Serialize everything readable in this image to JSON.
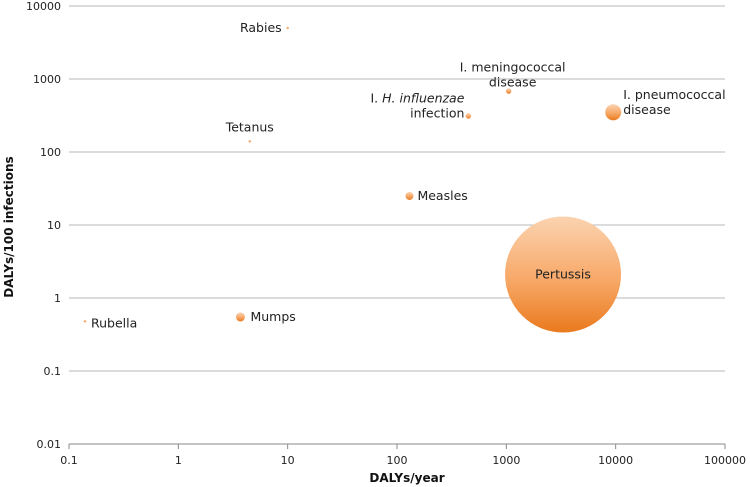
{
  "chart_data": {
    "type": "scatter",
    "xlabel": "DALYs/year",
    "ylabel": "DALYs/100 infections",
    "xscale": "log",
    "yscale": "log",
    "xlim": [
      0.1,
      100000
    ],
    "ylim": [
      0.01,
      10000
    ],
    "x_ticks": [
      "0.1",
      "1",
      "10",
      "100",
      "1000",
      "10000",
      "100000"
    ],
    "y_ticks": [
      "0.01",
      "0.1",
      "1",
      "10",
      "100",
      "1000",
      "10000"
    ],
    "grid": "horizontal",
    "bubble_colors": [
      "#fbd3b0",
      "#f7a867",
      "#ea7a1e"
    ],
    "points": [
      {
        "label": "Rabies",
        "x": 10,
        "y": 5000,
        "size": 1.0
      },
      {
        "label": "I. meningococcal disease",
        "label_lines": [
          "I. meningococcal",
          "disease"
        ],
        "x": 1050,
        "y": 680,
        "size": 2.5
      },
      {
        "label": "I. H. influenzae infection",
        "label_lines": [
          "I. H. influenzae",
          "infection"
        ],
        "italic_part": "H. influenzae",
        "x": 450,
        "y": 310,
        "size": 2.5
      },
      {
        "label": "I. pneumococcal disease",
        "label_lines": [
          "I. pneumococcal",
          "disease"
        ],
        "x": 9500,
        "y": 350,
        "size": 8.0
      },
      {
        "label": "Tetanus",
        "x": 4.5,
        "y": 140,
        "size": 1.0
      },
      {
        "label": "Measles",
        "x": 130,
        "y": 25,
        "size": 4.0
      },
      {
        "label": "Pertussis",
        "x": 3300,
        "y": 2.1,
        "size": 58.0
      },
      {
        "label": "Mumps",
        "x": 3.7,
        "y": 0.55,
        "size": 4.5
      },
      {
        "label": "Rubella",
        "x": 0.14,
        "y": 0.48,
        "size": 1.0
      }
    ]
  }
}
